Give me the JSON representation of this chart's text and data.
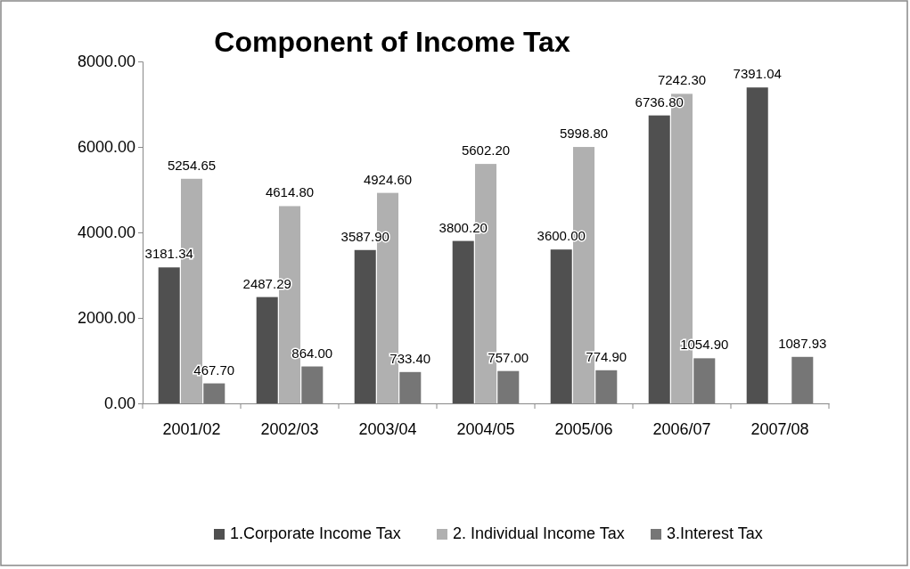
{
  "chart_data": {
    "type": "bar",
    "title": "Component of Income Tax",
    "categories": [
      "2001/02",
      "2002/03",
      "2003/04",
      "2004/05",
      "2005/06",
      "2006/07",
      "2007/08"
    ],
    "series": [
      {
        "name": "1.Corporate Income Tax",
        "color": "#505050",
        "values": [
          3181.34,
          2487.29,
          3587.9,
          3800.2,
          3600,
          6736.8,
          7391.04
        ],
        "value_labels": [
          "3181.34",
          "2487.29",
          "3587.90",
          "3800.20",
          "3600.00",
          "6736.80",
          "7391.04"
        ]
      },
      {
        "name": "2. Individual Income Tax",
        "color": "#b0b0b0",
        "values": [
          5254.65,
          4614.8,
          4924.6,
          5602.2,
          5998.8,
          7242.3,
          null
        ],
        "value_labels": [
          "5254.65",
          "4614.80",
          "4924.60",
          "5602.20",
          "5998.80",
          "7242.30",
          null
        ]
      },
      {
        "name": "3.Interest Tax",
        "color": "#767676",
        "values": [
          467.7,
          864,
          733.4,
          757,
          774.9,
          1054.9,
          1087.93
        ],
        "value_labels": [
          "467.70",
          "864.00",
          "733.40",
          "757.00",
          "774.90",
          "1054.90",
          "1087.93"
        ]
      }
    ],
    "ylim": [
      0,
      8000
    ],
    "yticks": [
      {
        "value": 0,
        "label": "0.00"
      },
      {
        "value": 2000,
        "label": "2000.00"
      },
      {
        "value": 4000,
        "label": "4000.00"
      },
      {
        "value": 6000,
        "label": "6000.00"
      },
      {
        "value": 8000,
        "label": "8000.00"
      }
    ],
    "grid": false,
    "legend": "bottom"
  }
}
